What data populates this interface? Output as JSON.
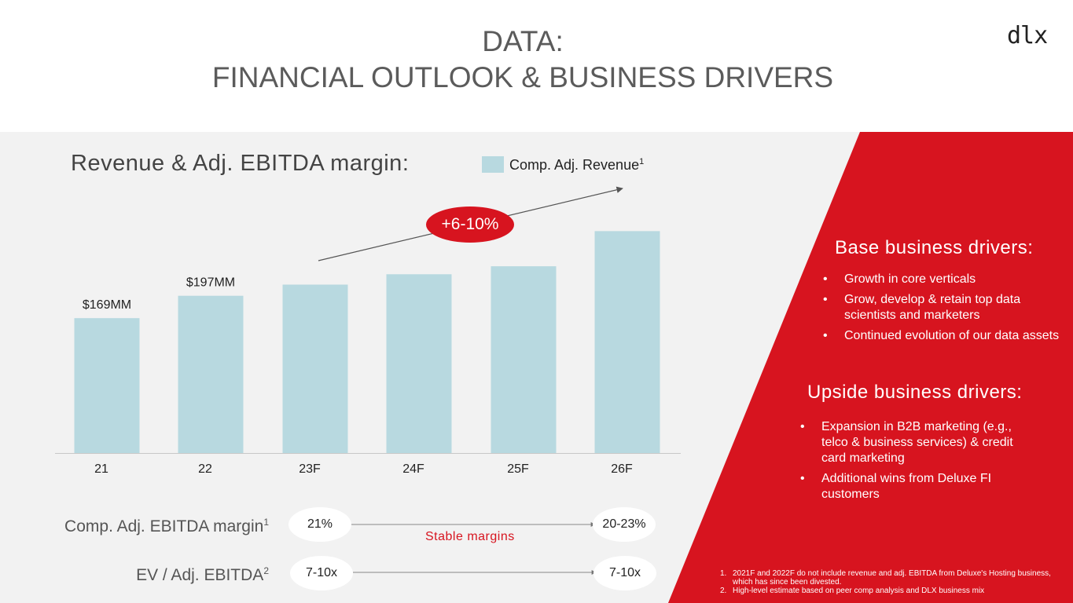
{
  "header": {
    "title_line1": "DATA:",
    "title_line2": "FINANCIAL OUTLOOK & BUSINESS DRIVERS",
    "logo": "dlx"
  },
  "colors": {
    "accent_red": "#d7141f",
    "bar": "#b8d9e0",
    "panel": "#f2f2f2"
  },
  "chart_data": {
    "type": "bar",
    "title": "Revenue & Adj. EBITDA margin:",
    "legend": {
      "label": "Comp. Adj. Revenue",
      "sup": "1",
      "placement": "top-right"
    },
    "categories": [
      "21",
      "22",
      "23F",
      "24F",
      "25F",
      "26F"
    ],
    "values": [
      169,
      197,
      211,
      224,
      234,
      278
    ],
    "data_labels": [
      "$169MM",
      "$197MM",
      "",
      "",
      "",
      ""
    ],
    "units": "$MM",
    "ylim": [
      0,
      300
    ],
    "growth_annotation": "+6-10%",
    "grid": false
  },
  "metrics": {
    "margin_label": "Comp. Adj. EBITDA margin",
    "margin_sup": "1",
    "margin_start": "21%",
    "margin_end": "20-23%",
    "margin_note": "Stable margins",
    "ev_label": "EV / Adj. EBITDA",
    "ev_sup": "2",
    "ev_start": "7-10x",
    "ev_end": "7-10x"
  },
  "base_drivers": {
    "heading": "Base business drivers:",
    "items": [
      "Growth in core verticals",
      "Grow, develop & retain top data scientists and marketers",
      "Continued evolution of our data assets"
    ]
  },
  "upside_drivers": {
    "heading": "Upside business drivers:",
    "items": [
      "Expansion in B2B marketing (e.g., telco & business services) & credit card marketing",
      "Additional wins from Deluxe FI customers"
    ]
  },
  "footnotes": [
    {
      "num": "1.",
      "text": "2021F and 2022F do not include revenue and adj. EBITDA from Deluxe's Hosting business, which has since been divested."
    },
    {
      "num": "2.",
      "text": "High-level estimate based on peer comp analysis and DLX business mix"
    }
  ]
}
